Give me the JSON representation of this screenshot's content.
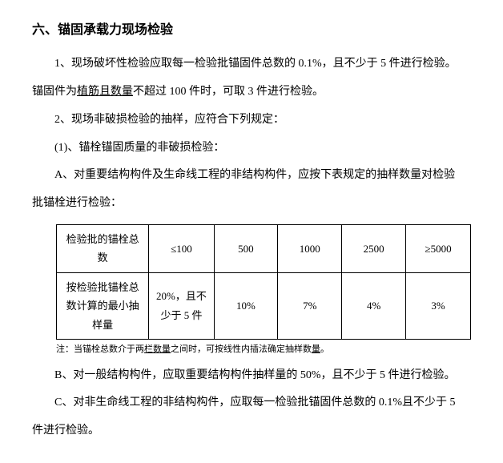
{
  "heading": "六、锚固承载力现场检验",
  "p1a": "1、现场破坏性检验应取每一检验批锚固件总数的 0.1%，且不少于 5 件进行检验。",
  "p1b_pre": "锚固件为",
  "p1b_ul": "植筋且数量",
  "p1b_post": "不超过 100 件时，可取 3 件进行检验。",
  "p2": "2、现场非破损检验的抽样，应符合下列规定：",
  "p3": "(1)、锚栓锚固质量的非破损检验：",
  "p4": "A、对重要结构构件及生命线工程的非结构构件，应按下表规定的抽样数量对检验",
  "p4b": "批锚栓进行检验：",
  "table": {
    "row1": {
      "label": "检验批的锚栓总数",
      "c1": "≤100",
      "c2": "500",
      "c3": "1000",
      "c4": "2500",
      "c5": "≥5000"
    },
    "row2": {
      "label": "按检验批锚栓总数计算的最小抽样量",
      "c1": "20%，且不少于 5 件",
      "c2": "10%",
      "c3": "7%",
      "c4": "4%",
      "c5": "3%"
    }
  },
  "note_pre": "注：当锚栓总数介于两",
  "note_ul1": "栏数量",
  "note_mid": "之间时，可按线性内插法确定抽样数",
  "note_ul2": "量",
  "note_post": "。",
  "pB": "B、对一般结构构件，应取重要结构构件抽样量的 50%，且不少于 5 件进行检验。",
  "pC": "C、对非生命线工程的非结构构件，应取每一检验批锚固件总数的 0.1%且不少于 5",
  "pCb": "件进行检验。"
}
